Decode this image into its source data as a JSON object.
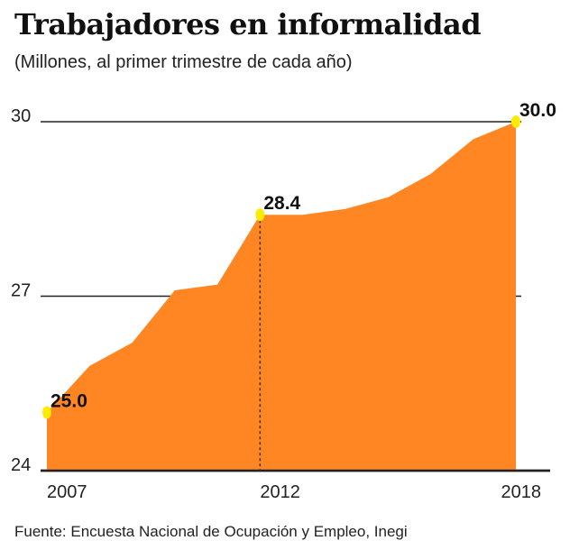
{
  "title": "Trabajadores en informalidad",
  "subtitle": "(Millones, al primer trimestre de cada año)",
  "source": "Fuente: Encuesta Nacional de Ocupación y Empleo, Inegi",
  "chart_data": {
    "type": "area",
    "x": [
      2007,
      2008,
      2009,
      2010,
      2011,
      2012,
      2013,
      2014,
      2015,
      2016,
      2017,
      2018
    ],
    "values": [
      25.0,
      25.8,
      26.2,
      27.1,
      27.2,
      28.4,
      28.4,
      28.5,
      28.7,
      29.1,
      29.7,
      30.0
    ],
    "ylim": [
      24,
      30
    ],
    "xlim": [
      2007,
      2018
    ],
    "y_ticks": [
      "24",
      "27",
      "30"
    ],
    "x_ticks": [
      "2007",
      "2012",
      "2018"
    ],
    "data_labels": [
      {
        "x": 2007,
        "label": "25.0"
      },
      {
        "x": 2012,
        "label": "28.4"
      },
      {
        "x": 2018,
        "label": "30.0"
      }
    ],
    "grid": true,
    "colors": {
      "area": "#FF8623",
      "marker": "#FFEB00",
      "axis": "#222222"
    }
  }
}
